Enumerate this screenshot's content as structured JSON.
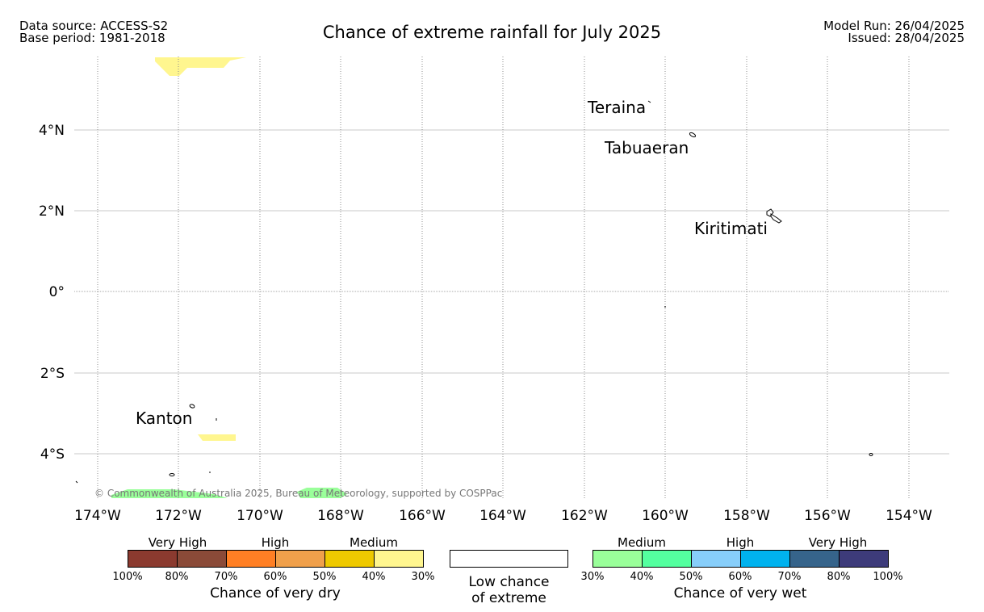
{
  "header": {
    "data_source": "Data source: ACCESS-S2",
    "base_period": "Base period: 1981-2018",
    "title": "Chance of extreme rainfall for July 2025",
    "model_run": "Model Run: 26/04/2025",
    "issued": "Issued: 28/04/2025"
  },
  "map": {
    "lat_labels": [
      "4°N",
      "2°N",
      "0°",
      "2°S",
      "4°S"
    ],
    "lon_labels": [
      "174°W",
      "172°W",
      "170°W",
      "168°W",
      "166°W",
      "164°W",
      "162°W",
      "160°W",
      "158°W",
      "156°W",
      "154°W"
    ],
    "places": [
      "Teraina",
      "Tabuaeran",
      "Kiritimati",
      "Kanton"
    ],
    "copyright": "© Commonwealth of Australia 2025, Bureau of Meteorology, supported by COSPPac"
  },
  "legend": {
    "dry": {
      "groups": [
        "Very High",
        "High",
        "Medium"
      ],
      "ticks": [
        "100%",
        "80%",
        "70%",
        "60%",
        "50%",
        "40%",
        "30%"
      ],
      "caption": "Chance of very dry",
      "colors": [
        "#8b3a2f",
        "#8a4a38",
        "#ff7f24",
        "#f0a04b",
        "#eec900",
        "#fff68f"
      ]
    },
    "low": {
      "caption_line1": "Low chance",
      "caption_line2": "of extreme"
    },
    "wet": {
      "groups": [
        "Medium",
        "High",
        "Very High"
      ],
      "ticks": [
        "30%",
        "40%",
        "50%",
        "60%",
        "70%",
        "80%",
        "100%"
      ],
      "caption": "Chance of very wet",
      "colors": [
        "#9aff9a",
        "#54ff9f",
        "#87cefa",
        "#00b2ee",
        "#36648b",
        "#3d3b7a"
      ]
    }
  }
}
